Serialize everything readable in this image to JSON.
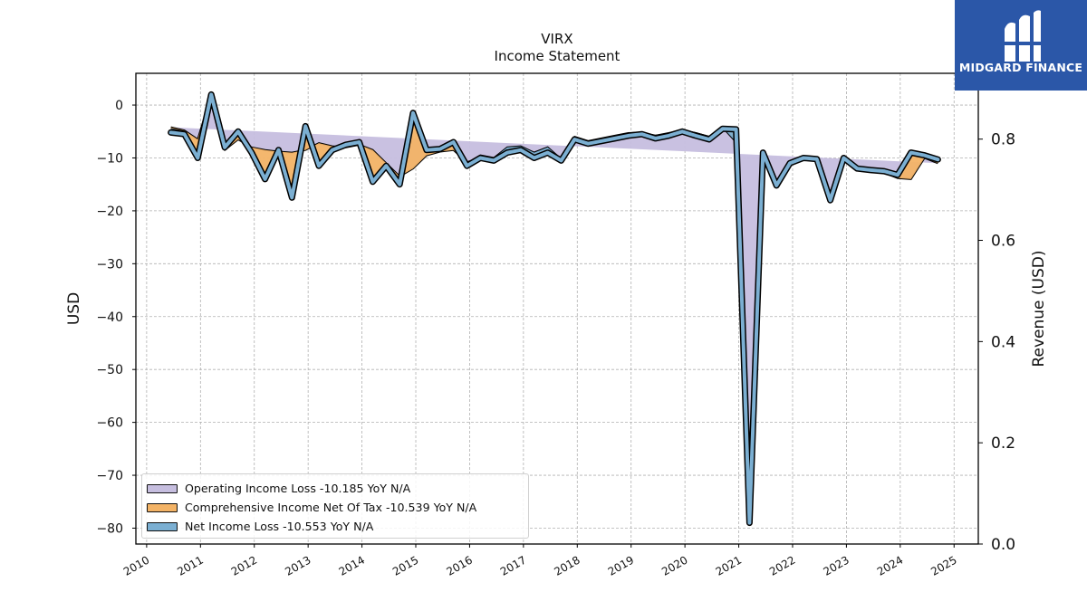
{
  "chart_data": {
    "type": "area",
    "title": "VIRX",
    "subtitle": "Income Statement",
    "ylabel": "USD",
    "y2label": "Revenue (USD)",
    "xlim": [
      2009.8,
      2025.45
    ],
    "ylim": [
      -83,
      6
    ],
    "y2lim": [
      0,
      0.93
    ],
    "xticks": [
      2010,
      2011,
      2012,
      2013,
      2014,
      2015,
      2016,
      2017,
      2018,
      2019,
      2020,
      2021,
      2022,
      2023,
      2024,
      2025
    ],
    "xticklabels": [
      "2010",
      "2011",
      "2012",
      "2013",
      "2014",
      "2015",
      "2016",
      "2017",
      "2018",
      "2019",
      "2020",
      "2021",
      "2022",
      "2023",
      "2024",
      "2025"
    ],
    "yticks": [
      0,
      -10,
      -20,
      -30,
      -40,
      -50,
      -60,
      -70,
      -80
    ],
    "yticklabels": [
      "0",
      "−10",
      "−20",
      "−30",
      "−40",
      "−50",
      "−60",
      "−70",
      "−80"
    ],
    "y2ticks": [
      0.0,
      0.2,
      0.4,
      0.6,
      0.8
    ],
    "y2ticklabels": [
      "0.0",
      "0.2",
      "0.4",
      "0.6",
      "0.8"
    ],
    "grid": true,
    "legend_position": "lower-left",
    "x": [
      2010.45,
      2010.7,
      2010.95,
      2011.2,
      2011.45,
      2011.7,
      2011.95,
      2012.2,
      2012.45,
      2012.7,
      2012.95,
      2013.2,
      2013.45,
      2013.7,
      2013.95,
      2014.2,
      2014.45,
      2014.7,
      2014.95,
      2015.2,
      2015.45,
      2015.7,
      2015.95,
      2016.2,
      2016.45,
      2016.7,
      2016.95,
      2017.2,
      2017.45,
      2017.7,
      2017.95,
      2018.2,
      2018.45,
      2018.7,
      2018.95,
      2019.2,
      2019.45,
      2019.7,
      2019.95,
      2020.2,
      2020.45,
      2020.7,
      2020.95,
      2021.2,
      2021.45,
      2021.7,
      2021.95,
      2022.2,
      2022.45,
      2022.7,
      2022.95,
      2023.2,
      2023.45,
      2023.7,
      2023.95,
      2024.2,
      2024.45,
      2024.7
    ],
    "series": [
      {
        "name": "Operating Income Loss  -10.185 YoY N/A",
        "color": "#c6bedf",
        "values": [
          -4.2,
          -4.8,
          -6.5,
          2.0,
          -8.5,
          -6.5,
          -8.0,
          -8.5,
          -8.8,
          -9.0,
          -8.5,
          -7.2,
          -7.8,
          -8.0,
          -7.5,
          -8.5,
          -11.0,
          -13.5,
          -12.0,
          -9.5,
          -8.8,
          -8.5,
          -10.8,
          -10.0,
          -10.5,
          -8.5,
          -8.0,
          -9.0,
          -8.0,
          -10.5,
          -6.2,
          -7.0,
          -6.5,
          -6.0,
          -5.5,
          -5.3,
          -5.8,
          -5.5,
          -4.8,
          -5.3,
          -6.0,
          -4.2,
          -4.6,
          -79.0,
          -9.0,
          -15.2,
          -11.0,
          -10.2,
          -10.3,
          -18.0,
          -10.0,
          -12.0,
          -12.5,
          -12.8,
          -13.8,
          -14.0,
          -10.0,
          -11.0
        ]
      },
      {
        "name": "Comprehensive Income Net Of Tax  -10.539 YoY N/A",
        "color": "#f3b366",
        "values": [
          -4.5,
          -5.0,
          -10.0,
          2.0,
          -8.0,
          -5.0,
          -9.0,
          -14.0,
          -8.5,
          -17.5,
          -4.0,
          -11.5,
          -8.5,
          -7.5,
          -7.0,
          -14.5,
          -11.5,
          -15.0,
          -1.5,
          -8.5,
          -8.3,
          -7.0,
          -11.0,
          -9.5,
          -10.0,
          -8.0,
          -7.8,
          -9.0,
          -8.0,
          -10.2,
          -6.0,
          -6.8,
          -6.3,
          -5.8,
          -5.3,
          -5.2,
          -5.8,
          -5.3,
          -4.8,
          -5.3,
          -6.0,
          -4.2,
          -7.0,
          -79.0,
          -9.0,
          -15.2,
          -11.0,
          -10.0,
          -10.2,
          -18.0,
          -10.0,
          -11.8,
          -12.3,
          -12.5,
          -13.0,
          -9.0,
          -9.5,
          -10.3
        ]
      },
      {
        "name": "Net Income Loss  -10.553 YoY N/A",
        "color": "#7bafd2",
        "values": [
          -5.2,
          -5.5,
          -10.0,
          2.0,
          -8.0,
          -5.0,
          -9.0,
          -14.0,
          -8.5,
          -17.5,
          -4.0,
          -11.5,
          -8.5,
          -7.5,
          -7.0,
          -14.5,
          -11.5,
          -15.0,
          -1.5,
          -8.5,
          -8.3,
          -7.0,
          -11.5,
          -10.0,
          -10.5,
          -9.0,
          -8.5,
          -10.0,
          -9.0,
          -10.5,
          -6.5,
          -7.3,
          -6.8,
          -6.3,
          -5.8,
          -5.5,
          -6.3,
          -5.8,
          -5.0,
          -5.8,
          -6.5,
          -4.5,
          -4.6,
          -79.0,
          -9.0,
          -15.2,
          -11.0,
          -10.0,
          -10.2,
          -18.0,
          -10.0,
          -12.0,
          -12.3,
          -12.5,
          -13.2,
          -9.0,
          -9.5,
          -10.3
        ]
      }
    ]
  },
  "brand": {
    "name": "MIDGARD FINANCE",
    "bg_color": "#2b57a8"
  }
}
